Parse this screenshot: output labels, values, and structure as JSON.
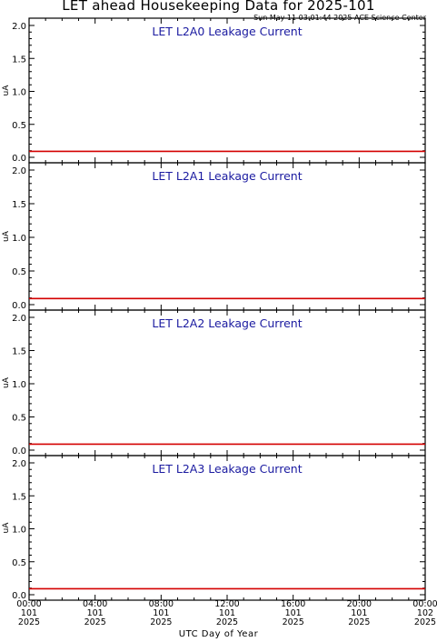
{
  "page": {
    "title": "LET ahead Housekeeping Data for 2025-101",
    "timestamp": "Sun May 11 03:01:44 2025 ACE Science Center",
    "xlabel": "UTC Day of Year"
  },
  "colors": {
    "frame": "#000000",
    "panel_title": "#1a1aa0",
    "series": "#d40000"
  },
  "x_ticks": [
    {
      "lines": [
        "00:00",
        "101",
        "2025"
      ]
    },
    {
      "lines": [
        "04:00",
        "101",
        "2025"
      ]
    },
    {
      "lines": [
        "08:00",
        "101",
        "2025"
      ]
    },
    {
      "lines": [
        "12:00",
        "101",
        "2025"
      ]
    },
    {
      "lines": [
        "16:00",
        "101",
        "2025"
      ]
    },
    {
      "lines": [
        "20:00",
        "101",
        "2025"
      ]
    },
    {
      "lines": [
        "00:00",
        "102",
        "2025"
      ]
    }
  ],
  "chart_data": [
    {
      "type": "line",
      "title": "LET L2A0 Leakage Current",
      "ylabel": "uA",
      "ylim": [
        0,
        2.0
      ],
      "yticks": [
        "0.0",
        "0.5",
        "1.0",
        "1.5",
        "2.0"
      ],
      "xlim": [
        0,
        24
      ],
      "x": [
        0,
        24
      ],
      "y": [
        0.09,
        0.09
      ]
    },
    {
      "type": "line",
      "title": "LET L2A1 Leakage Current",
      "ylabel": "uA",
      "ylim": [
        0,
        2.0
      ],
      "yticks": [
        "0.0",
        "0.5",
        "1.0",
        "1.5",
        "2.0"
      ],
      "xlim": [
        0,
        24
      ],
      "x": [
        0,
        24
      ],
      "y": [
        0.09,
        0.09
      ]
    },
    {
      "type": "line",
      "title": "LET L2A2 Leakage Current",
      "ylabel": "uA",
      "ylim": [
        0,
        2.0
      ],
      "yticks": [
        "0.0",
        "0.5",
        "1.0",
        "1.5",
        "2.0"
      ],
      "xlim": [
        0,
        24
      ],
      "x": [
        0,
        24
      ],
      "y": [
        0.09,
        0.09
      ]
    },
    {
      "type": "line",
      "title": "LET L2A3 Leakage Current",
      "ylabel": "uA",
      "ylim": [
        0,
        2.0
      ],
      "yticks": [
        "0.0",
        "0.5",
        "1.0",
        "1.5",
        "2.0"
      ],
      "xlim": [
        0,
        24
      ],
      "x": [
        0,
        24
      ],
      "y": [
        0.09,
        0.09
      ]
    }
  ]
}
